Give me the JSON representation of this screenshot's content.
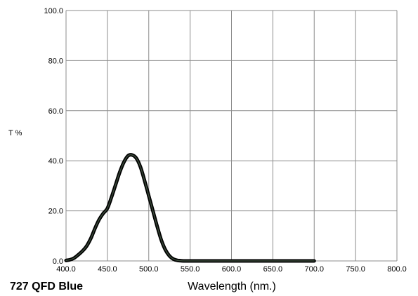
{
  "chart_data": {
    "type": "line",
    "title": "727 QFD Blue",
    "xlabel": "Wavelength (nm.)",
    "ylabel": "T %",
    "xlim": [
      400,
      800
    ],
    "ylim": [
      0,
      100
    ],
    "x_ticks": [
      "400.0",
      "450.0",
      "500.0",
      "550.0",
      "600.0",
      "650.0",
      "700.0",
      "750.0",
      "800.0"
    ],
    "y_ticks": [
      "0.0",
      "20.0",
      "40.0",
      "60.0",
      "80.0",
      "100.0"
    ],
    "grid": true,
    "colors": {
      "line": "#000000",
      "line_highlight": "#3a4a3a",
      "grid": "#8c8c8c"
    },
    "series": [
      {
        "x": [
          400,
          405,
          410,
          415,
          420,
          425,
          430,
          435,
          440,
          445,
          450,
          455,
          460,
          465,
          470,
          475,
          480,
          485,
          490,
          495,
          500,
          505,
          510,
          515,
          520,
          525,
          530,
          535,
          540,
          545,
          550,
          555,
          560,
          570,
          580,
          600,
          650,
          700
        ],
        "values": [
          0.2,
          0.5,
          1.2,
          2.5,
          4.0,
          6.0,
          9.0,
          13.0,
          16.5,
          19.0,
          21.0,
          25.5,
          30.5,
          35.5,
          39.5,
          42.0,
          42.3,
          41.0,
          37.5,
          32.0,
          26.0,
          20.0,
          14.0,
          8.5,
          4.5,
          2.0,
          0.7,
          0.2,
          0.05,
          0.0,
          0.0,
          0.0,
          0.0,
          0.0,
          0.0,
          0.0,
          0.0,
          0.0
        ]
      }
    ]
  }
}
